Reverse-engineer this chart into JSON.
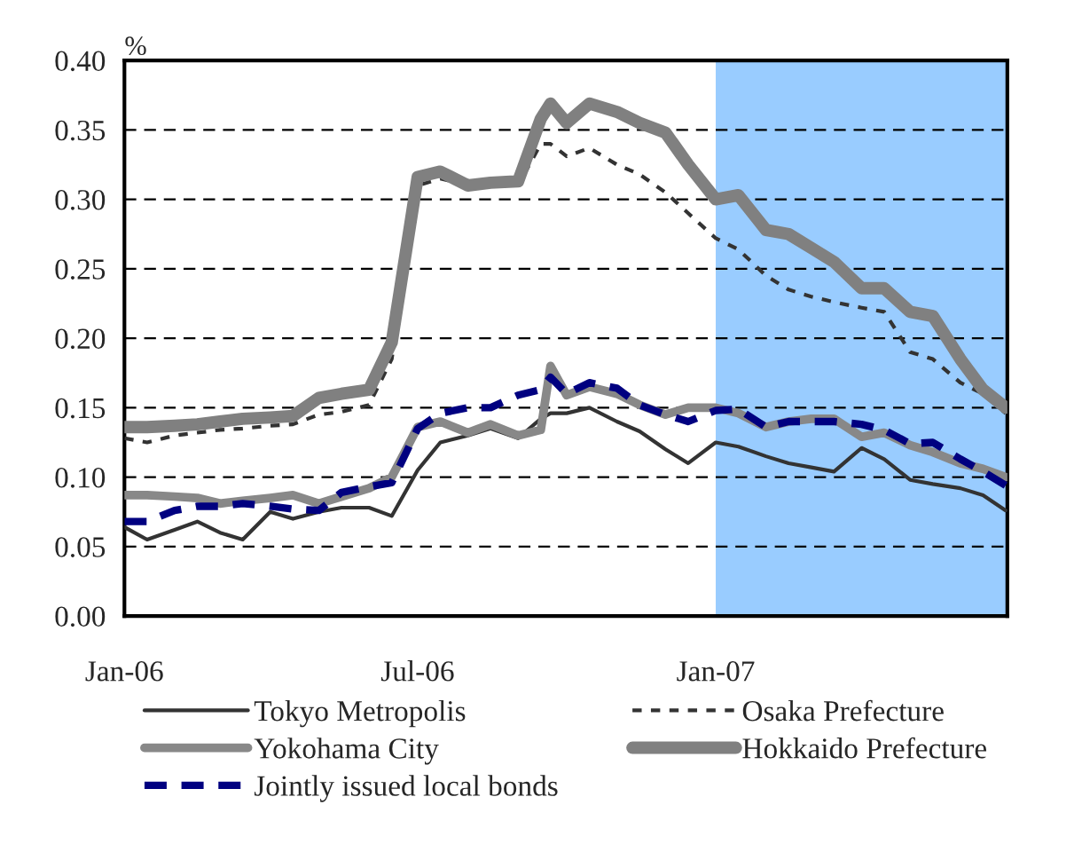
{
  "chart_data": {
    "type": "line",
    "ylabel": "%",
    "x": [
      "2006-01-01",
      "2006-01-15",
      "2006-02-01",
      "2006-02-15",
      "2006-03-01",
      "2006-03-15",
      "2006-04-01",
      "2006-04-15",
      "2006-05-01",
      "2006-05-15",
      "2006-06-01",
      "2006-06-15",
      "2006-07-01",
      "2006-07-15",
      "2006-08-01",
      "2006-08-15",
      "2006-09-01",
      "2006-09-15",
      "2006-09-21",
      "2006-10-01",
      "2006-10-15",
      "2006-11-01",
      "2006-11-15",
      "2006-12-01",
      "2006-12-15",
      "2007-01-01",
      "2007-01-15",
      "2007-02-01",
      "2007-02-15",
      "2007-03-01",
      "2007-03-15",
      "2007-04-01",
      "2007-04-15",
      "2007-05-01",
      "2007-05-15",
      "2007-06-01",
      "2007-06-15",
      "2007-06-29"
    ],
    "series": [
      {
        "name": "Tokyo Metropolis",
        "color": "#333333",
        "line_style": "solid",
        "values": [
          0.064,
          0.055,
          0.062,
          0.068,
          0.06,
          0.055,
          0.075,
          0.07,
          0.075,
          0.078,
          0.078,
          0.072,
          0.105,
          0.125,
          0.13,
          0.135,
          0.128,
          0.142,
          0.146,
          0.146,
          0.15,
          0.14,
          0.133,
          0.12,
          0.11,
          0.125,
          0.122,
          0.115,
          0.11,
          0.107,
          0.104,
          0.121,
          0.113,
          0.098,
          0.095,
          0.092,
          0.087,
          0.076
        ]
      },
      {
        "name": "Osaka Prefecture",
        "color": "#333333",
        "line_style": "dashed",
        "values": [
          0.128,
          0.125,
          0.13,
          0.132,
          0.134,
          0.135,
          0.137,
          0.138,
          0.145,
          0.147,
          0.152,
          0.185,
          0.31,
          0.315,
          0.31,
          0.31,
          0.31,
          0.34,
          0.34,
          0.331,
          0.337,
          0.325,
          0.318,
          0.305,
          0.29,
          0.272,
          0.264,
          0.245,
          0.235,
          0.23,
          0.226,
          0.222,
          0.219,
          0.19,
          0.185,
          0.168,
          0.16,
          0.146
        ]
      },
      {
        "name": "Yokohama City",
        "color": "#888888",
        "line_style": "solid",
        "values": [
          0.087,
          0.087,
          0.086,
          0.085,
          0.081,
          0.083,
          0.085,
          0.087,
          0.081,
          0.086,
          0.092,
          0.1,
          0.136,
          0.14,
          0.132,
          0.138,
          0.13,
          0.134,
          0.18,
          0.159,
          0.165,
          0.16,
          0.152,
          0.145,
          0.15,
          0.15,
          0.146,
          0.136,
          0.14,
          0.142,
          0.142,
          0.129,
          0.132,
          0.123,
          0.118,
          0.11,
          0.106,
          0.1
        ]
      },
      {
        "name": "Hokkaido Prefecture",
        "color": "#808080",
        "line_style": "solid",
        "values": [
          0.136,
          0.136,
          0.137,
          0.138,
          0.14,
          0.142,
          0.143,
          0.144,
          0.157,
          0.16,
          0.163,
          0.197,
          0.316,
          0.32,
          0.31,
          0.312,
          0.313,
          0.358,
          0.369,
          0.355,
          0.369,
          0.363,
          0.355,
          0.348,
          0.325,
          0.3,
          0.303,
          0.278,
          0.275,
          0.265,
          0.255,
          0.236,
          0.236,
          0.219,
          0.216,
          0.185,
          0.163,
          0.15
        ]
      },
      {
        "name": "Jointly issued local bonds",
        "color": "#000080",
        "line_style": "dashed",
        "values": [
          0.068,
          0.068,
          0.076,
          0.079,
          0.079,
          0.081,
          0.079,
          0.077,
          0.076,
          0.089,
          0.093,
          0.096,
          0.135,
          0.146,
          0.15,
          0.15,
          0.159,
          0.163,
          0.172,
          0.16,
          0.168,
          0.164,
          0.152,
          0.145,
          0.14,
          0.148,
          0.149,
          0.136,
          0.14,
          0.14,
          0.14,
          0.138,
          0.134,
          0.124,
          0.125,
          0.113,
          0.104,
          0.094
        ]
      }
    ],
    "xlim": [
      "2006-01-01",
      "2007-06-30"
    ],
    "xticks": [
      {
        "value": "2006-01-01",
        "label": "Jan-06"
      },
      {
        "value": "2006-07-01",
        "label": "Jul-06"
      },
      {
        "value": "2007-01-01",
        "label": "Jan-07"
      }
    ],
    "ylim": [
      0,
      0.4
    ],
    "yticks": [
      {
        "value": 0,
        "label": "0.00"
      },
      {
        "value": 0.05,
        "label": "0.05"
      },
      {
        "value": 0.1,
        "label": "0.10"
      },
      {
        "value": 0.15,
        "label": "0.15"
      },
      {
        "value": 0.2,
        "label": "0.20"
      },
      {
        "value": 0.25,
        "label": "0.25"
      },
      {
        "value": 0.3,
        "label": "0.30"
      },
      {
        "value": 0.35,
        "label": "0.35"
      },
      {
        "value": 0.4,
        "label": "0.40"
      }
    ],
    "bands": [
      {
        "axis": "x",
        "from": "2007-01-01",
        "to": "2007-06-30",
        "color": "#99ccff"
      }
    ],
    "grid": "y",
    "legend": "bottom",
    "marker": "none"
  }
}
